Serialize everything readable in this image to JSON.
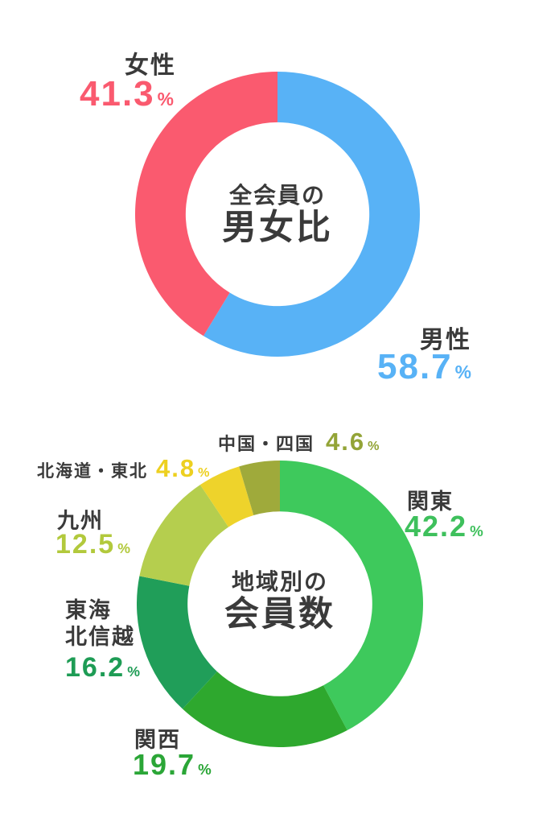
{
  "page": {
    "background": "#ffffff",
    "text_color": "#3a3a3a"
  },
  "unit": "%",
  "chart_data": [
    {
      "type": "pie",
      "variant": "donut",
      "title_lines": [
        "全会員の",
        "男女比"
      ],
      "start_angle_deg": 0,
      "direction": "clockwise",
      "inner_radius_ratio": 0.645,
      "segments": [
        {
          "label": "男性",
          "value": 58.7,
          "color": "#58B2F6",
          "label_color": "#58B2F6"
        },
        {
          "label": "女性",
          "value": 41.3,
          "color": "#FA5A6F",
          "label_color": "#FA5A6F"
        }
      ]
    },
    {
      "type": "pie",
      "variant": "donut",
      "title_lines": [
        "地域別の",
        "会員数"
      ],
      "start_angle_deg": 0,
      "direction": "clockwise",
      "inner_radius_ratio": 0.645,
      "segments": [
        {
          "label": "関東",
          "value": 42.2,
          "color": "#3EC95C",
          "label_color": "#3EC05C"
        },
        {
          "label": "関西",
          "value": 19.7,
          "color": "#2EA82E",
          "label_color": "#2BA637"
        },
        {
          "label": "東海北信越",
          "label_lines": [
            "東海",
            "北信越"
          ],
          "value": 16.2,
          "color": "#209E59",
          "label_color": "#1E9C55"
        },
        {
          "label": "九州",
          "value": 12.5,
          "color": "#B5CE4E",
          "label_color": "#B2C93C"
        },
        {
          "label": "北海道・東北",
          "value": 4.8,
          "color": "#EED32B",
          "label_color": "#EDD020"
        },
        {
          "label": "中国・四国",
          "value": 4.6,
          "color": "#9FAA3B",
          "label_color": "#93A437"
        }
      ]
    }
  ]
}
